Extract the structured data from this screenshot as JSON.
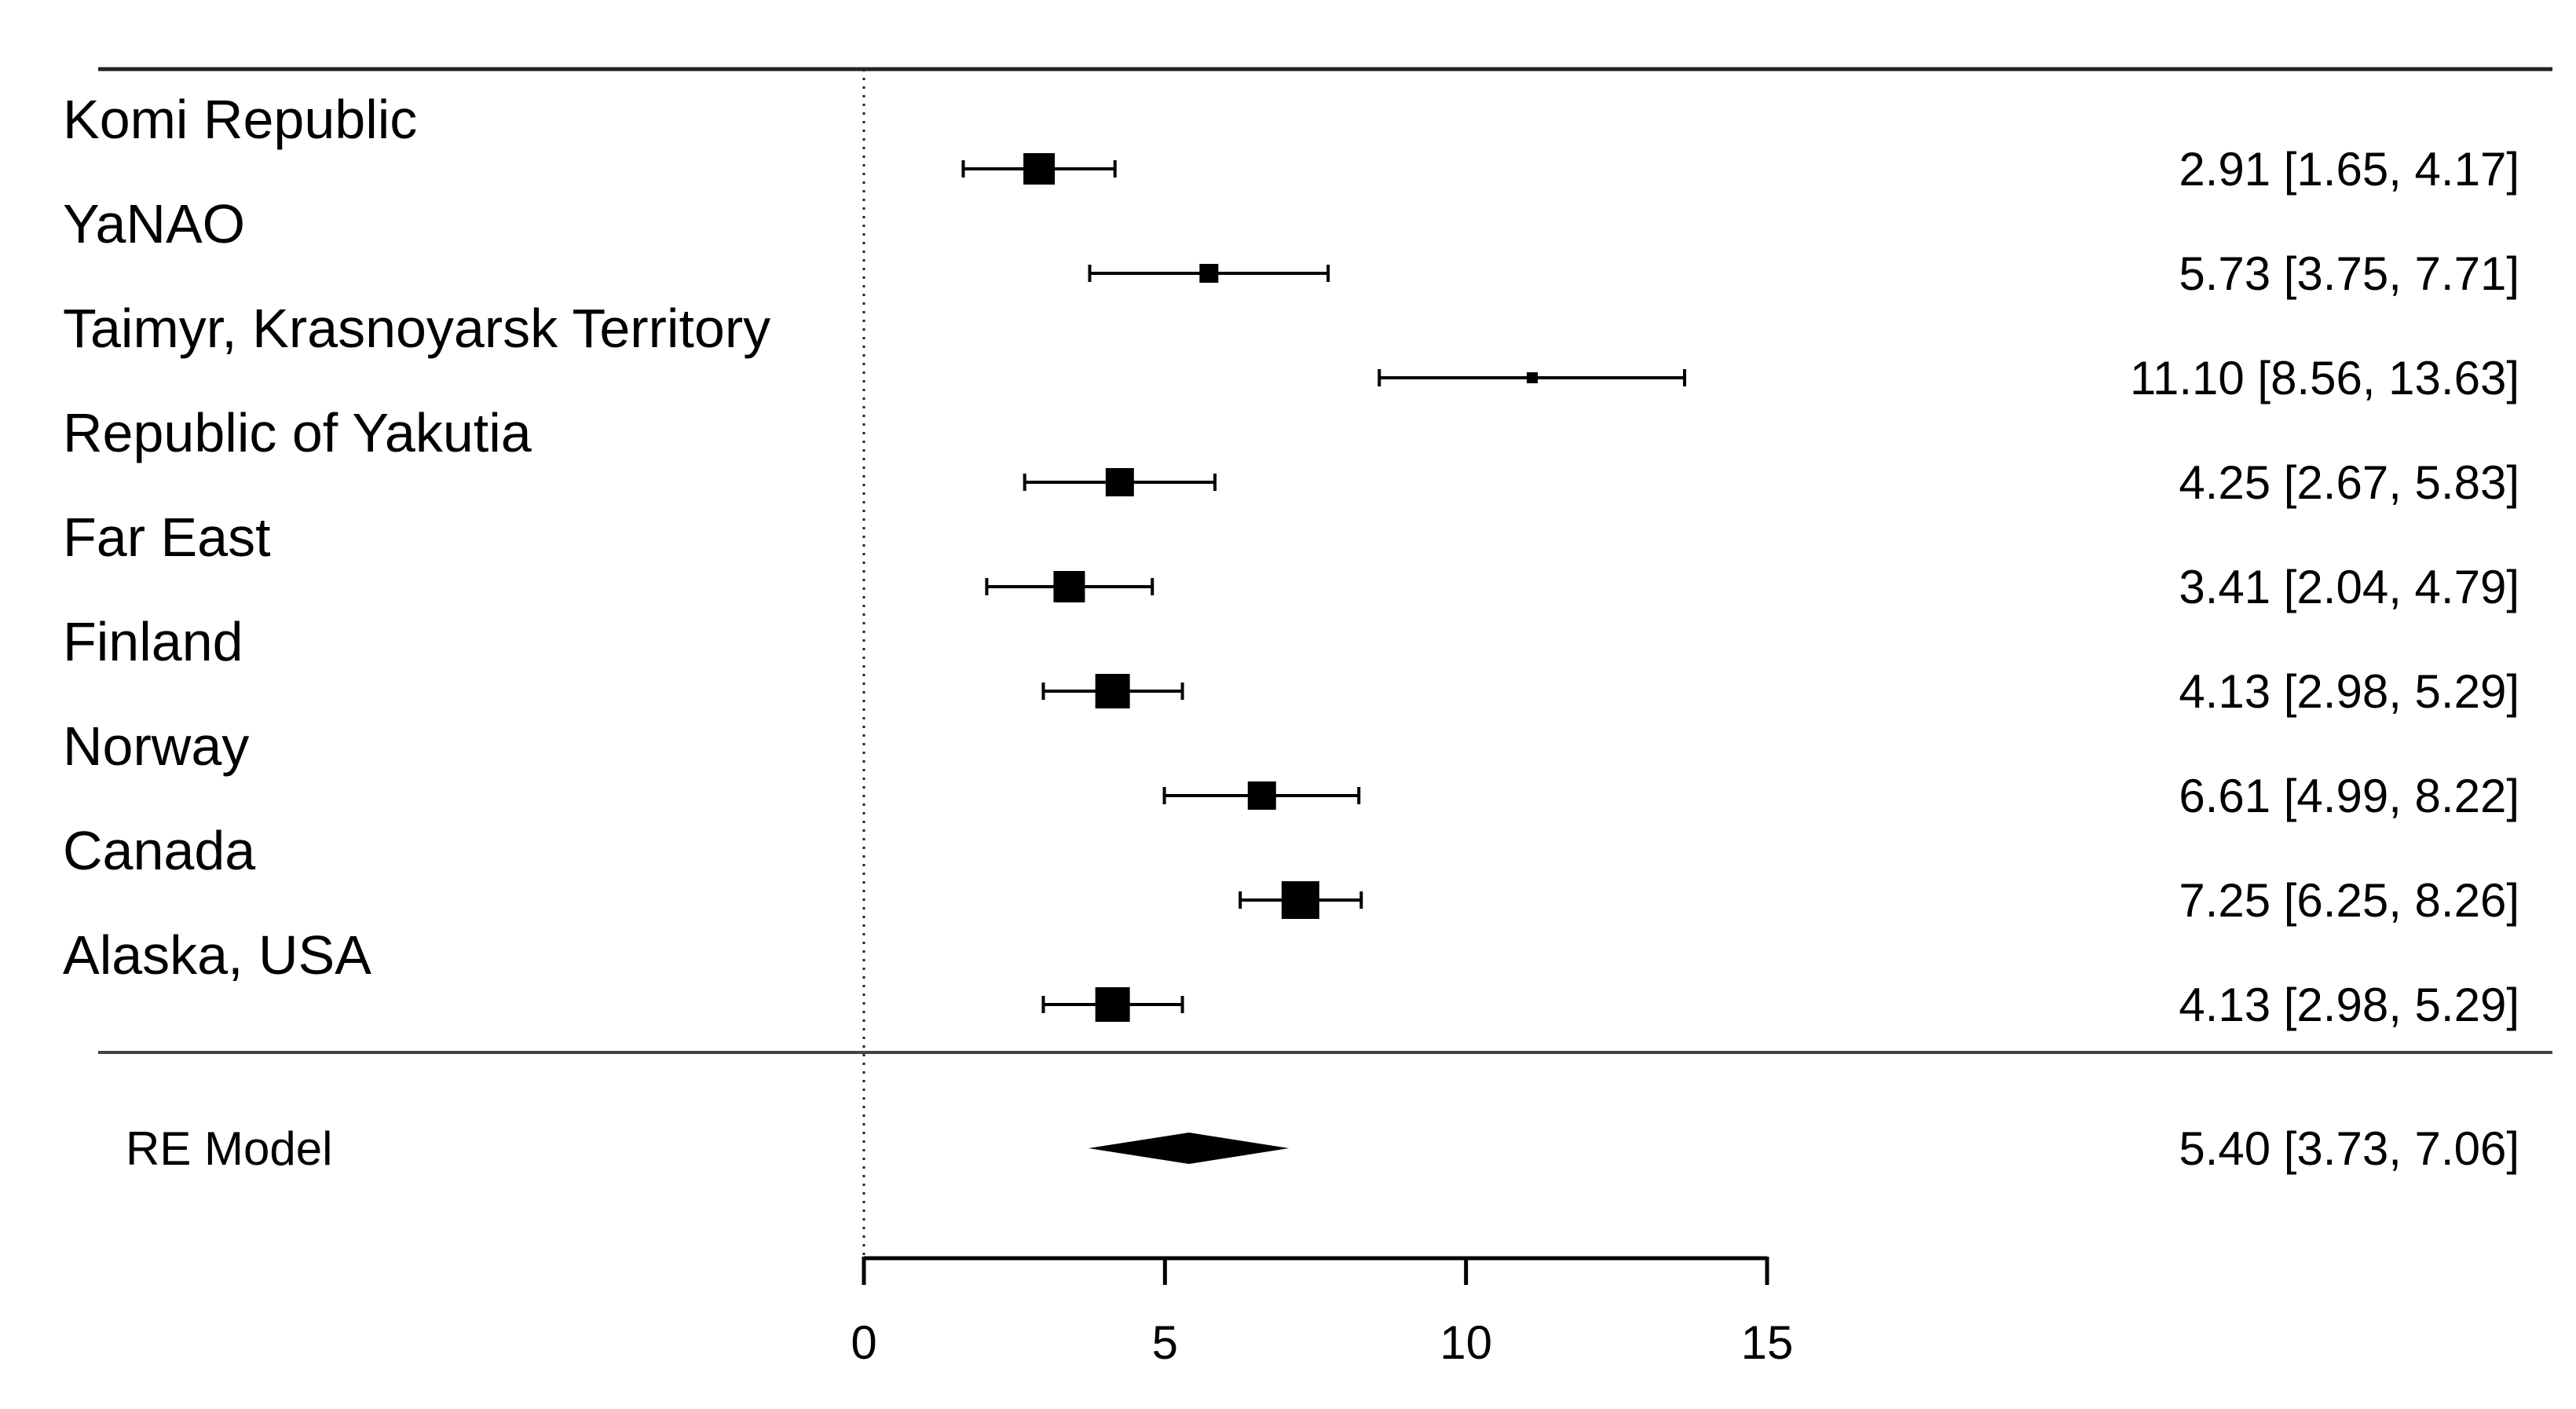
{
  "chart_data": {
    "type": "forest",
    "xlim": [
      0,
      15
    ],
    "xticks": [
      0,
      5,
      10,
      15
    ],
    "reference_line": 0,
    "studies": [
      {
        "label": "Komi Republic",
        "estimate": 2.91,
        "lower": 1.65,
        "upper": 4.17,
        "ci_text": "2.91 [1.65,  4.17]"
      },
      {
        "label": "YaNAO",
        "estimate": 5.73,
        "lower": 3.75,
        "upper": 7.71,
        "ci_text": "5.73 [3.75,  7.71]"
      },
      {
        "label": "Taimyr, Krasnoyarsk Territory",
        "estimate": 11.1,
        "lower": 8.56,
        "upper": 13.63,
        "ci_text": "11.10 [8.56, 13.63]"
      },
      {
        "label": "Republic of Yakutia",
        "estimate": 4.25,
        "lower": 2.67,
        "upper": 5.83,
        "ci_text": "4.25 [2.67,  5.83]"
      },
      {
        "label": "Far East",
        "estimate": 3.41,
        "lower": 2.04,
        "upper": 4.79,
        "ci_text": "3.41 [2.04,  4.79]"
      },
      {
        "label": "Finland",
        "estimate": 4.13,
        "lower": 2.98,
        "upper": 5.29,
        "ci_text": "4.13 [2.98,  5.29]"
      },
      {
        "label": "Norway",
        "estimate": 6.61,
        "lower": 4.99,
        "upper": 8.22,
        "ci_text": "6.61 [4.99,  8.22]"
      },
      {
        "label": "Canada",
        "estimate": 7.25,
        "lower": 6.25,
        "upper": 8.26,
        "ci_text": "7.25 [6.25,  8.26]"
      },
      {
        "label": "Alaska, USA",
        "estimate": 4.13,
        "lower": 2.98,
        "upper": 5.29,
        "ci_text": "4.13 [2.98,  5.29]"
      }
    ],
    "summary": {
      "label": "RE Model",
      "estimate": 5.4,
      "lower": 3.73,
      "upper": 7.06,
      "ci_text": "5.40 [3.73,  7.06]"
    }
  }
}
